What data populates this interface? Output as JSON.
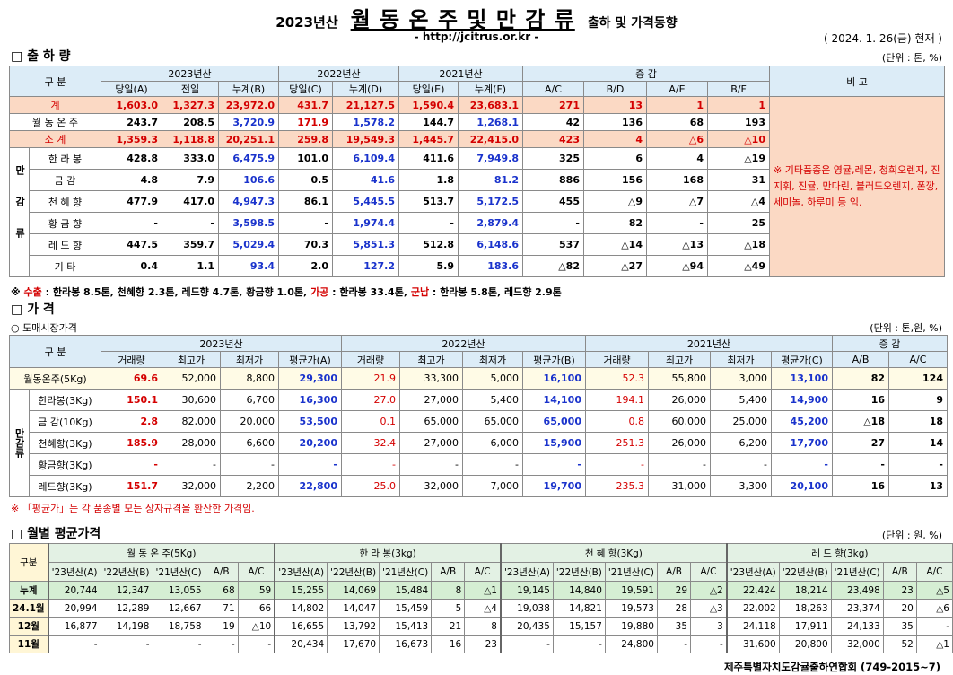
{
  "header": {
    "year": "2023년산",
    "title": "월 동 온 주 및 만 감 류",
    "title_suffix": "출하 및 가격동향",
    "url": "- http://jcitrus.or.kr -",
    "date": "( 2024. 1. 26(금) 현재 )"
  },
  "shipment": {
    "heading": "□ 출 하 량",
    "unit": "(단위 : 톤, %)",
    "header": {
      "gubun": "구 분",
      "groups": [
        "2023년산",
        "2022년산",
        "2021년산",
        "증 감"
      ],
      "remark": "비 고",
      "subcols": [
        "당일(A)",
        "전일",
        "누계(B)",
        "당일(C)",
        "누계(D)",
        "당일(E)",
        "누계(F)",
        "A/C",
        "B/D",
        "A/E",
        "B/F"
      ]
    },
    "group": "만감류",
    "rows": [
      {
        "label": "계",
        "values": [
          "1,603.0",
          "1,327.3",
          "23,972.0",
          "431.7",
          "21,127.5",
          "1,590.4",
          "23,683.1",
          "271",
          "13",
          "1",
          "1"
        ]
      },
      {
        "label": "월 동 온 주",
        "values": [
          "243.7",
          "208.5",
          "3,720.9",
          "171.9",
          "1,578.2",
          "144.7",
          "1,268.1",
          "42",
          "136",
          "68",
          "193"
        ]
      },
      {
        "label": "소 계",
        "values": [
          "1,359.3",
          "1,118.8",
          "20,251.1",
          "259.8",
          "19,549.3",
          "1,445.7",
          "22,415.0",
          "423",
          "4",
          "△6",
          "△10"
        ]
      },
      {
        "label": "한 라 봉",
        "values": [
          "428.8",
          "333.0",
          "6,475.9",
          "101.0",
          "6,109.4",
          "411.6",
          "7,949.8",
          "325",
          "6",
          "4",
          "△19"
        ]
      },
      {
        "label": "금 감",
        "values": [
          "4.8",
          "7.9",
          "106.6",
          "0.5",
          "41.6",
          "1.8",
          "81.2",
          "886",
          "156",
          "168",
          "31"
        ]
      },
      {
        "label": "천 혜 향",
        "values": [
          "477.9",
          "417.0",
          "4,947.3",
          "86.1",
          "5,445.5",
          "513.7",
          "5,172.5",
          "455",
          "△9",
          "△7",
          "△4"
        ]
      },
      {
        "label": "황 금 향",
        "values": [
          "-",
          "-",
          "3,598.5",
          "-",
          "1,974.4",
          "-",
          "2,879.4",
          "-",
          "82",
          "-",
          "25"
        ]
      },
      {
        "label": "레 드 향",
        "values": [
          "447.5",
          "359.7",
          "5,029.4",
          "70.3",
          "5,851.3",
          "512.8",
          "6,148.6",
          "537",
          "△14",
          "△13",
          "△18"
        ]
      },
      {
        "label": "기 타",
        "values": [
          "0.4",
          "1.1",
          "93.4",
          "2.0",
          "127.2",
          "5.9",
          "183.6",
          "△82",
          "△27",
          "△94",
          "△49"
        ]
      }
    ],
    "remark": "※ 기타품종은 영귤,레몬, 청희오렌지, 진지휘, 진귤, 만다린, 블러드오렌지, 폰깡,세미놀, 하루미 등 임.",
    "note": [
      "※ ",
      "수출",
      " : 한라봉 8.5톤, 천혜향 2.3톤, 레드향 4.7톤, 황금향 1.0톤, ",
      "가공",
      " : 한라봉 33.4톤, ",
      "군납",
      " : 한라봉 5.8톤, 레드향 2.9톤"
    ]
  },
  "price": {
    "heading": "□ 가    격",
    "subheading": "○ 도매시장가격",
    "unit": "(단위 : 톤,원, %)",
    "header": {
      "gubun": "구 분",
      "groups": [
        "2023년산",
        "2022년산",
        "2021년산",
        "증 감"
      ],
      "subcols": [
        "거래량",
        "최고가",
        "최저가",
        "평균가(A)",
        "거래량",
        "최고가",
        "최저가",
        "평균가(B)",
        "거래량",
        "최고가",
        "최저가",
        "평균가(C)",
        "A/B",
        "A/C"
      ]
    },
    "group": "만감류",
    "rows": [
      {
        "label": "월동온주(5Kg)",
        "values": [
          "69.6",
          "52,000",
          "8,800",
          "29,300",
          "21.9",
          "33,300",
          "5,000",
          "16,100",
          "52.3",
          "55,800",
          "3,000",
          "13,100",
          "82",
          "124"
        ]
      },
      {
        "label": "한라봉(3Kg)",
        "values": [
          "150.1",
          "30,600",
          "6,700",
          "16,300",
          "27.0",
          "27,000",
          "5,400",
          "14,100",
          "194.1",
          "26,000",
          "5,400",
          "14,900",
          "16",
          "9"
        ]
      },
      {
        "label": "금 감(10Kg)",
        "values": [
          "2.8",
          "82,000",
          "20,000",
          "53,500",
          "0.1",
          "65,000",
          "65,000",
          "65,000",
          "0.8",
          "60,000",
          "25,000",
          "45,200",
          "△18",
          "18"
        ]
      },
      {
        "label": "천혜향(3Kg)",
        "values": [
          "185.9",
          "28,000",
          "6,600",
          "20,200",
          "32.4",
          "27,000",
          "6,000",
          "15,900",
          "251.3",
          "26,000",
          "6,200",
          "17,700",
          "27",
          "14"
        ]
      },
      {
        "label": "황금향(3Kg)",
        "values": [
          "-",
          "-",
          "-",
          "-",
          "-",
          "-",
          "-",
          "-",
          "-",
          "-",
          "-",
          "-",
          "-",
          "-"
        ]
      },
      {
        "label": "레드향(3Kg)",
        "values": [
          "151.7",
          "32,000",
          "2,200",
          "22,800",
          "25.0",
          "32,000",
          "7,000",
          "19,700",
          "235.3",
          "31,000",
          "3,300",
          "20,100",
          "16",
          "13"
        ]
      }
    ],
    "note": "※ 「평균가」는 각 품종별 모든 상자규격을 환산한 가격임."
  },
  "monthly": {
    "heading": "□ 월별 평균가격",
    "unit": "(단위 : 원, %)",
    "header": {
      "gubun": "구분",
      "groups": [
        "월 동 온 주(5Kg)",
        "한  라  봉(3kg)",
        "천 혜 향(3Kg)",
        "레 드 향(3kg)"
      ],
      "subcols": [
        "'23년산(A)",
        "'22년산(B)",
        "'21년산(C)",
        "A/B",
        "A/C"
      ]
    },
    "rows": [
      {
        "label": "누계",
        "values": [
          "20,744",
          "12,347",
          "13,055",
          "68",
          "59",
          "15,255",
          "14,069",
          "15,484",
          "8",
          "△1",
          "19,145",
          "14,840",
          "19,591",
          "29",
          "△2",
          "22,424",
          "18,214",
          "23,498",
          "23",
          "△5"
        ]
      },
      {
        "label": "24.1월",
        "values": [
          "20,994",
          "12,289",
          "12,667",
          "71",
          "66",
          "14,802",
          "14,047",
          "15,459",
          "5",
          "△4",
          "19,038",
          "14,821",
          "19,573",
          "28",
          "△3",
          "22,002",
          "18,263",
          "23,374",
          "20",
          "△6"
        ]
      },
      {
        "label": "12월",
        "values": [
          "16,877",
          "14,198",
          "18,758",
          "19",
          "△10",
          "16,655",
          "13,792",
          "15,413",
          "21",
          "8",
          "20,435",
          "15,157",
          "19,880",
          "35",
          "3",
          "24,118",
          "17,911",
          "24,133",
          "35",
          "-"
        ]
      },
      {
        "label": "11월",
        "values": [
          "-",
          "-",
          "-",
          "-",
          "-",
          "20,434",
          "17,670",
          "16,673",
          "16",
          "23",
          "-",
          "-",
          "24,800",
          "-",
          "-",
          "31,600",
          "20,800",
          "32,000",
          "52",
          "△1"
        ]
      }
    ]
  },
  "footer": "제주특별자치도감귤출하연합회 (749-2015~7)"
}
